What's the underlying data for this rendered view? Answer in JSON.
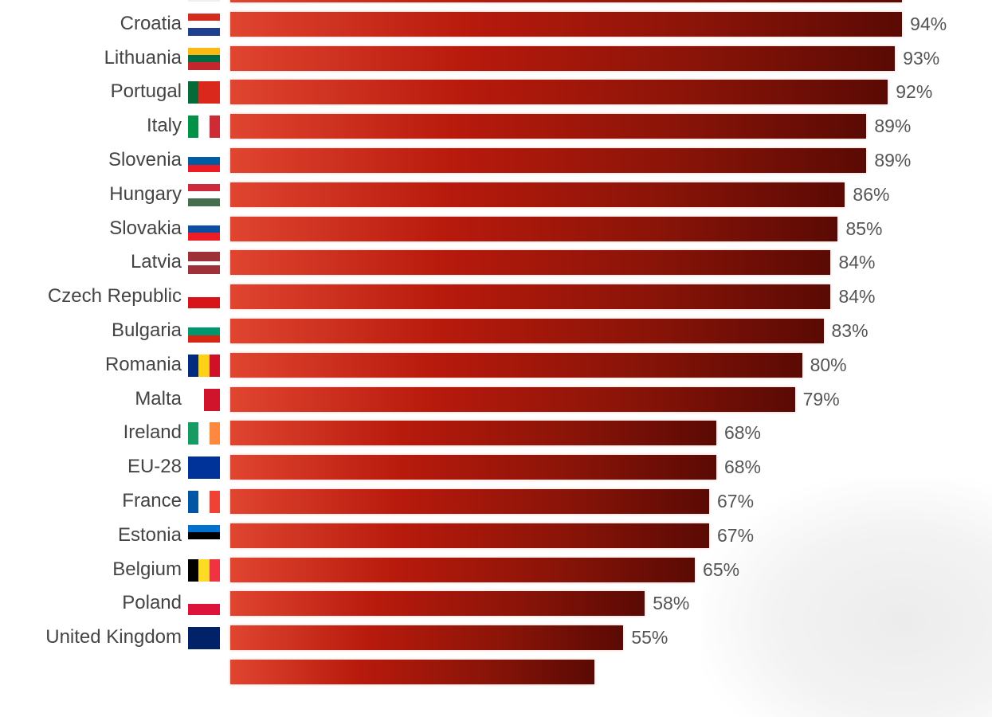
{
  "chart_data": {
    "type": "bar",
    "orientation": "horizontal",
    "xlim": [
      0,
      100
    ],
    "grid": false,
    "bar_color_gradient": [
      "#e04530",
      "#5a0a04"
    ],
    "rows": [
      {
        "label": "",
        "value": 94,
        "value_label": "",
        "flag": {
          "dir": "h",
          "colors": [
            "#eeeeee"
          ]
        }
      },
      {
        "label": "Croatia",
        "value": 94,
        "value_label": "94%",
        "flag": {
          "dir": "h",
          "colors": [
            "#d52b1e",
            "#ffffff",
            "#1f3f8f"
          ]
        }
      },
      {
        "label": "Lithuania",
        "value": 93,
        "value_label": "93%",
        "flag": {
          "dir": "h",
          "colors": [
            "#fdb913",
            "#006a44",
            "#c1272d"
          ]
        }
      },
      {
        "label": "Portugal",
        "value": 92,
        "value_label": "92%",
        "flag": {
          "dir": "v",
          "colors": [
            "#046a38",
            "#da291c",
            "#da291c"
          ]
        }
      },
      {
        "label": "Italy",
        "value": 89,
        "value_label": "89%",
        "flag": {
          "dir": "v",
          "colors": [
            "#009246",
            "#ffffff",
            "#ce2b37"
          ]
        }
      },
      {
        "label": "Slovenia",
        "value": 89,
        "value_label": "89%",
        "flag": {
          "dir": "h",
          "colors": [
            "#ffffff",
            "#005da4",
            "#ed1c24"
          ]
        }
      },
      {
        "label": "Hungary",
        "value": 86,
        "value_label": "86%",
        "flag": {
          "dir": "h",
          "colors": [
            "#cd2a3e",
            "#ffffff",
            "#436f4d"
          ]
        }
      },
      {
        "label": "Slovakia",
        "value": 85,
        "value_label": "85%",
        "flag": {
          "dir": "h",
          "colors": [
            "#ffffff",
            "#0b4ea2",
            "#ee1c25"
          ]
        }
      },
      {
        "label": "Latvia",
        "value": 84,
        "value_label": "84%",
        "flag": {
          "dir": "h",
          "colors": [
            "#9e3039",
            "#9e3039",
            "#ffffff",
            "#9e3039",
            "#9e3039"
          ]
        }
      },
      {
        "label": "Czech Republic",
        "value": 84,
        "value_label": "84%",
        "flag": {
          "dir": "h",
          "colors": [
            "#ffffff",
            "#d7141a"
          ]
        }
      },
      {
        "label": "Bulgaria",
        "value": 83,
        "value_label": "83%",
        "flag": {
          "dir": "h",
          "colors": [
            "#ffffff",
            "#00966e",
            "#d62612"
          ]
        }
      },
      {
        "label": "Romania",
        "value": 80,
        "value_label": "80%",
        "flag": {
          "dir": "v",
          "colors": [
            "#002b7f",
            "#fcd116",
            "#ce1126"
          ]
        }
      },
      {
        "label": "Malta",
        "value": 79,
        "value_label": "79%",
        "flag": {
          "dir": "v",
          "colors": [
            "#ffffff",
            "#cf142b"
          ]
        }
      },
      {
        "label": "Ireland",
        "value": 68,
        "value_label": "68%",
        "flag": {
          "dir": "v",
          "colors": [
            "#169b62",
            "#ffffff",
            "#ff883e"
          ]
        }
      },
      {
        "label": "EU-28",
        "value": 68,
        "value_label": "68%",
        "flag": {
          "dir": "h",
          "colors": [
            "#003399"
          ]
        }
      },
      {
        "label": "France",
        "value": 67,
        "value_label": "67%",
        "flag": {
          "dir": "v",
          "colors": [
            "#0055a4",
            "#ffffff",
            "#ef4135"
          ]
        }
      },
      {
        "label": "Estonia",
        "value": 67,
        "value_label": "67%",
        "flag": {
          "dir": "h",
          "colors": [
            "#0072ce",
            "#000000",
            "#ffffff"
          ]
        }
      },
      {
        "label": "Belgium",
        "value": 65,
        "value_label": "65%",
        "flag": {
          "dir": "v",
          "colors": [
            "#000000",
            "#fdda24",
            "#ef3340"
          ]
        }
      },
      {
        "label": "Poland",
        "value": 58,
        "value_label": "58%",
        "flag": {
          "dir": "h",
          "colors": [
            "#ffffff",
            "#dc143c"
          ]
        }
      },
      {
        "label": "United Kingdom",
        "value": 55,
        "value_label": "55%",
        "flag": {
          "dir": "h",
          "colors": [
            "#012169"
          ]
        }
      },
      {
        "label": "",
        "value": 51,
        "value_label": "",
        "flag": {
          "dir": "h",
          "colors": [
            "#ffffff"
          ]
        }
      }
    ]
  }
}
